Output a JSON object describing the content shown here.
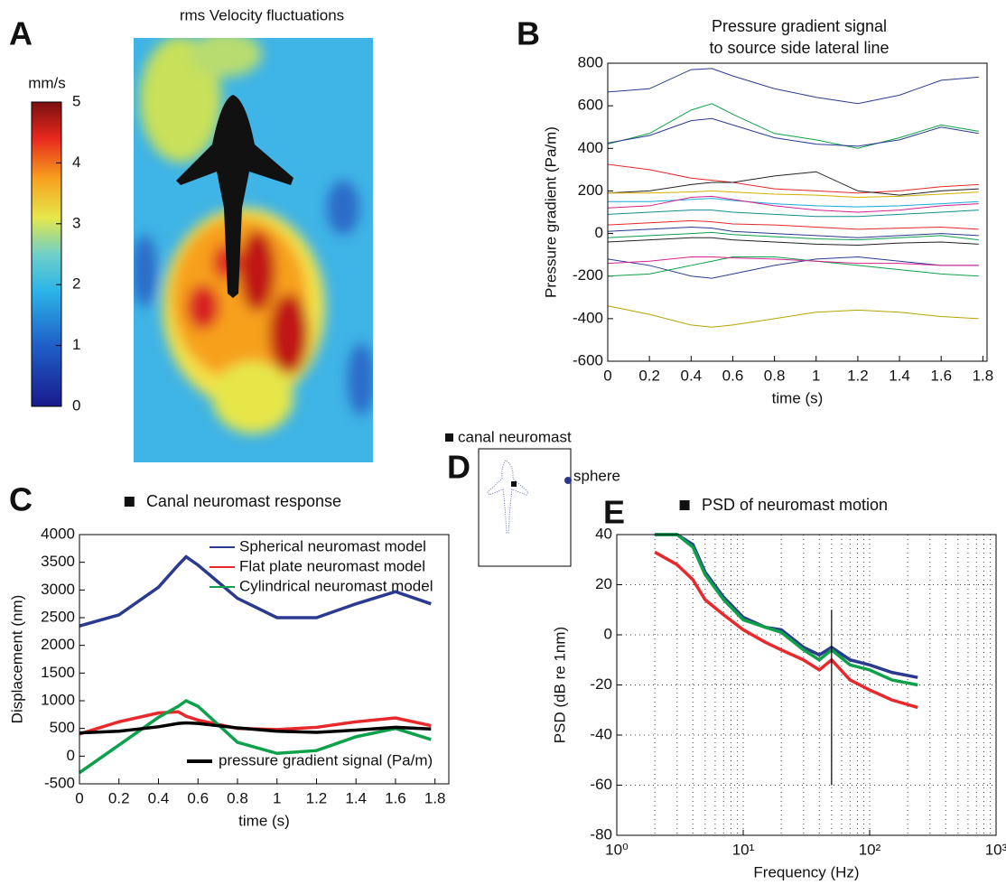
{
  "panels": [
    "A",
    "B",
    "C",
    "D",
    "E"
  ],
  "panel_d": {
    "labels": [
      "canal neuromast",
      "sphere"
    ]
  },
  "chart_data": [
    {
      "type": "heatmap",
      "title": "rms Velocity fluctuations",
      "colorbar_label": "mm/s",
      "clim": [
        0,
        5
      ],
      "cticks": [
        0,
        1,
        2,
        3,
        4,
        5
      ]
    },
    {
      "type": "line",
      "title": "Pressure gradient signal\nto source side lateral line",
      "xlabel": "time (s)",
      "ylabel": "Pressure gradient (Pa/m)",
      "x": [
        0,
        0.2,
        0.4,
        0.5,
        0.6,
        0.8,
        1.0,
        1.2,
        1.4,
        1.6,
        1.78
      ],
      "xlim": [
        0,
        1.82
      ],
      "xticks": [
        0,
        0.2,
        0.4,
        0.6,
        0.8,
        1,
        1.2,
        1.4,
        1.6,
        1.8
      ],
      "ylim": [
        -600,
        800
      ],
      "yticks": [
        -600,
        -400,
        -200,
        0,
        200,
        400,
        600,
        800
      ],
      "line_width": 1,
      "series": [
        {
          "color": "#2b3990",
          "values": [
            665,
            680,
            770,
            775,
            740,
            680,
            640,
            610,
            650,
            720,
            735
          ]
        },
        {
          "color": "#0ea04b",
          "values": [
            420,
            470,
            580,
            610,
            560,
            470,
            440,
            400,
            450,
            510,
            480
          ]
        },
        {
          "color": "#2b3990",
          "values": [
            425,
            460,
            530,
            540,
            510,
            450,
            420,
            410,
            440,
            500,
            470
          ]
        },
        {
          "color": "#e8282b",
          "values": [
            325,
            300,
            260,
            250,
            240,
            210,
            200,
            190,
            200,
            220,
            230
          ]
        },
        {
          "color": "#222222",
          "values": [
            190,
            200,
            230,
            240,
            240,
            270,
            290,
            200,
            180,
            200,
            210
          ]
        },
        {
          "color": "#d4b000",
          "values": [
            190,
            190,
            195,
            200,
            195,
            185,
            180,
            170,
            175,
            185,
            195
          ]
        },
        {
          "color": "#19a9d8",
          "values": [
            150,
            150,
            160,
            165,
            155,
            140,
            130,
            125,
            130,
            140,
            150
          ]
        },
        {
          "color": "#d6208f",
          "values": [
            120,
            130,
            170,
            175,
            160,
            130,
            110,
            100,
            110,
            130,
            140
          ]
        },
        {
          "color": "#138f8f",
          "values": [
            90,
            100,
            110,
            110,
            100,
            90,
            80,
            80,
            90,
            100,
            110
          ]
        },
        {
          "color": "#e8282b",
          "values": [
            40,
            50,
            60,
            55,
            45,
            40,
            30,
            20,
            25,
            30,
            20
          ]
        },
        {
          "color": "#2b3990",
          "values": [
            10,
            20,
            30,
            25,
            10,
            0,
            -10,
            -20,
            -10,
            0,
            -10
          ]
        },
        {
          "color": "#0ea04b",
          "values": [
            -20,
            -10,
            0,
            5,
            -5,
            -15,
            -25,
            -30,
            -20,
            -10,
            -30
          ]
        },
        {
          "color": "#222222",
          "values": [
            -40,
            -30,
            -20,
            -20,
            -30,
            -40,
            -50,
            -55,
            -45,
            -40,
            -50
          ]
        },
        {
          "color": "#2b3990",
          "values": [
            -120,
            -150,
            -200,
            -210,
            -190,
            -150,
            -120,
            -110,
            -130,
            -150,
            -150
          ]
        },
        {
          "color": "#0ea04b",
          "values": [
            -200,
            -190,
            -150,
            -130,
            -110,
            -110,
            -130,
            -150,
            -170,
            -190,
            -200
          ]
        },
        {
          "color": "#d6208f",
          "values": [
            -140,
            -130,
            -110,
            -110,
            -115,
            -120,
            -130,
            -140,
            -140,
            -150,
            -150
          ]
        },
        {
          "color": "#b5a500",
          "values": [
            -340,
            -380,
            -430,
            -440,
            -430,
            -400,
            -370,
            -360,
            -370,
            -390,
            -400
          ]
        }
      ]
    },
    {
      "type": "line",
      "title": "Canal neuromast response",
      "xlabel": "time (s)",
      "ylabel": "Displacement (nm)",
      "x": [
        0,
        0.2,
        0.4,
        0.5,
        0.54,
        0.6,
        0.8,
        1.0,
        1.2,
        1.4,
        1.6,
        1.78
      ],
      "xlim": [
        0,
        1.87
      ],
      "xticks": [
        0,
        0.2,
        0.4,
        0.6,
        0.8,
        1,
        1.2,
        1.4,
        1.6,
        1.8
      ],
      "ylim": [
        -500,
        4000
      ],
      "yticks": [
        -500,
        0,
        500,
        1000,
        1500,
        2000,
        2500,
        3000,
        3500,
        4000
      ],
      "line_width": 3.5,
      "series": [
        {
          "name": "Spherical neuromast model",
          "color": "#2b3990",
          "values": [
            2350,
            2550,
            3050,
            3450,
            3600,
            3450,
            2850,
            2500,
            2500,
            2750,
            2970,
            2750
          ]
        },
        {
          "name": "Flat plate neuromast model",
          "color": "#e8282b",
          "values": [
            400,
            620,
            780,
            800,
            720,
            650,
            500,
            480,
            520,
            620,
            690,
            550
          ]
        },
        {
          "name": "Cylindrical neuromast model",
          "color": "#0ea04b",
          "values": [
            -300,
            200,
            700,
            900,
            1000,
            900,
            250,
            50,
            100,
            350,
            500,
            300
          ]
        },
        {
          "name": "pressure gradient signal (Pa/m)",
          "color": "#000000",
          "values": [
            420,
            450,
            530,
            590,
            600,
            590,
            510,
            450,
            430,
            470,
            520,
            490
          ]
        }
      ]
    },
    {
      "type": "line",
      "title": "PSD of neuromast motion",
      "xlabel": "Frequency (Hz)",
      "ylabel": "PSD (dB re 1nm)",
      "xlog": true,
      "x": [
        2,
        3,
        4,
        5,
        7,
        10,
        15,
        20,
        30,
        40,
        50,
        70,
        100,
        150,
        240
      ],
      "xlim": [
        1,
        1000
      ],
      "xticks": [
        {
          "value": 1,
          "label": "10⁰"
        },
        {
          "value": 10,
          "label": "10¹"
        },
        {
          "value": 100,
          "label": "10²"
        },
        {
          "value": 1000,
          "label": "10³"
        }
      ],
      "ylim": [
        -80,
        40
      ],
      "yticks": [
        -80,
        -60,
        -40,
        -20,
        0,
        20,
        40
      ],
      "grid": true,
      "line_width": 3.5,
      "vline": {
        "x": 50,
        "y": [
          -60,
          10
        ]
      },
      "series": [
        {
          "color": "#2b3990",
          "values": [
            40,
            40,
            36,
            25,
            15,
            7,
            3,
            2,
            -5,
            -8,
            -5,
            -10,
            -12,
            -15,
            -17
          ]
        },
        {
          "color": "#0ea04b",
          "values": [
            40,
            40,
            35,
            24,
            14,
            6,
            3,
            1,
            -6,
            -10,
            -6,
            -12,
            -14,
            -18,
            -20
          ]
        },
        {
          "color": "#e8282b",
          "values": [
            33,
            28,
            22,
            14,
            8,
            2,
            -3,
            -6,
            -10,
            -14,
            -10,
            -18,
            -22,
            -26,
            -29
          ]
        }
      ]
    }
  ]
}
